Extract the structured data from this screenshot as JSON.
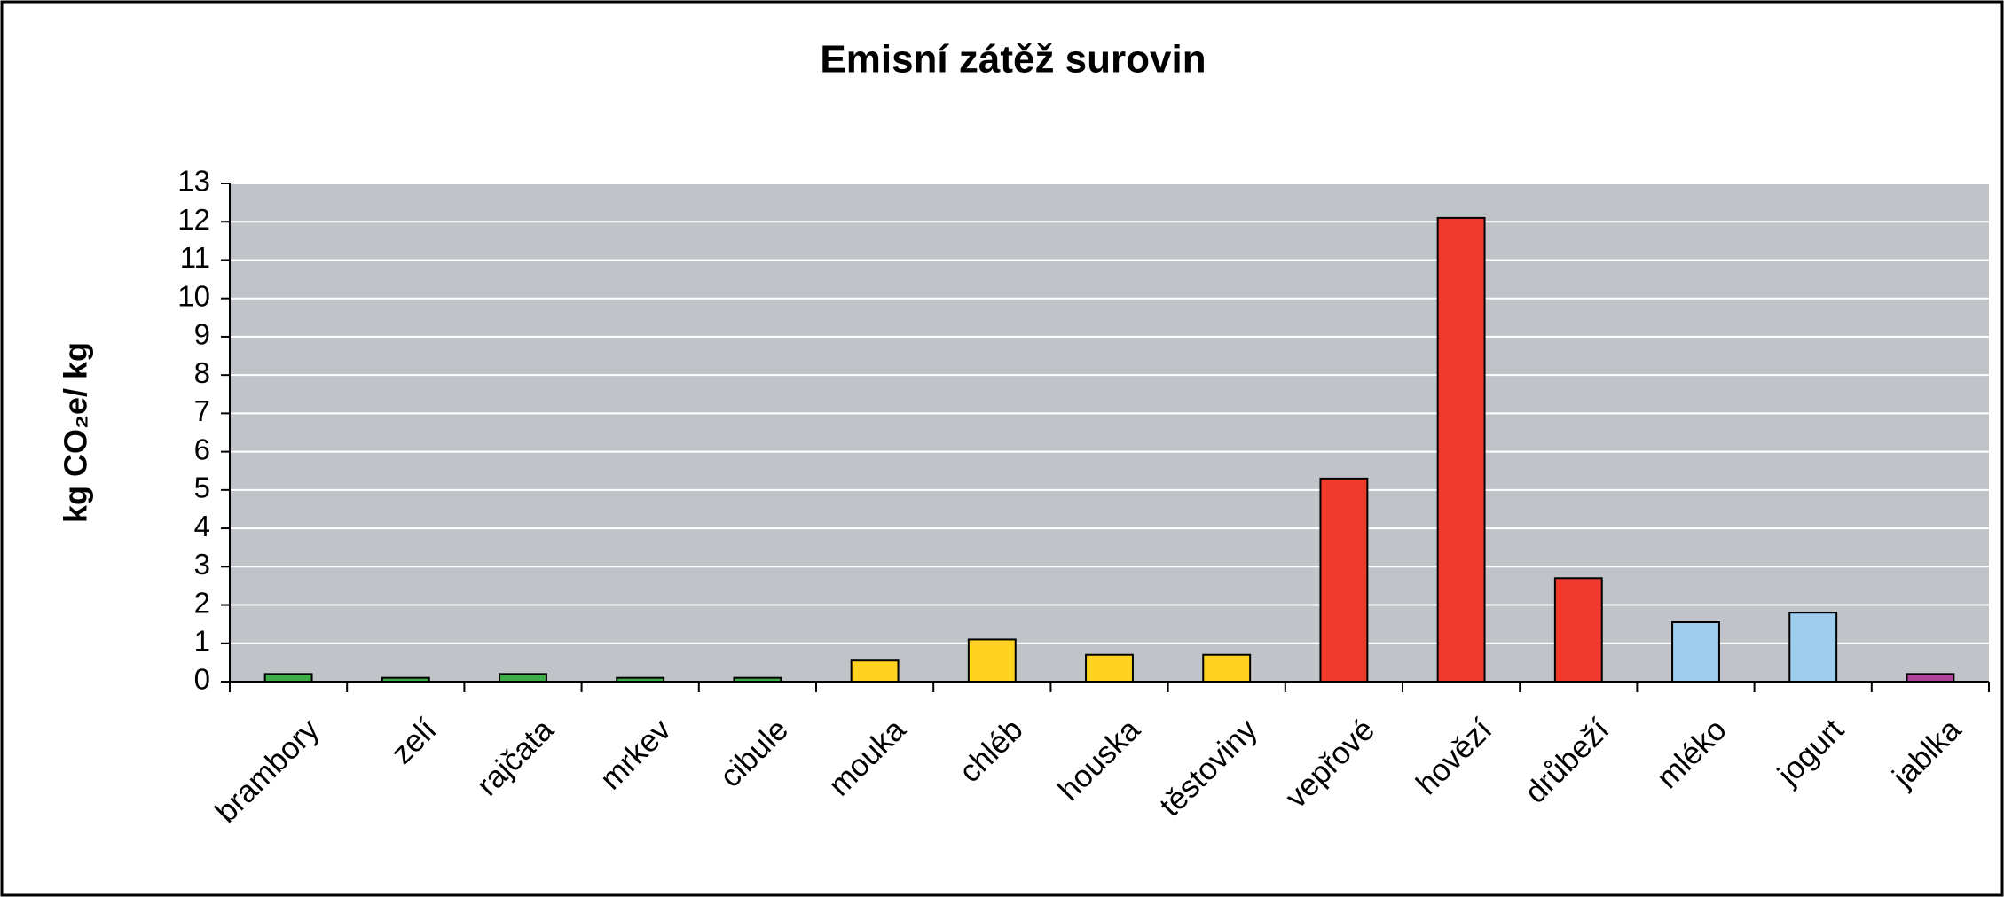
{
  "chart_data": {
    "type": "bar",
    "title": "Emisní zátěž surovin",
    "y_label": "kg CO₂e/ kg",
    "categories": [
      "brambory",
      "zelí",
      "rajčata",
      "mrkev",
      "cibule",
      "mouka",
      "chléb",
      "houska",
      "těstoviny",
      "vepřové",
      "hovězí",
      "drůbeží",
      "mléko",
      "jogurt",
      "jablka"
    ],
    "values": [
      0.2,
      0.1,
      0.2,
      0.1,
      0.1,
      0.55,
      1.1,
      0.7,
      0.7,
      5.3,
      12.1,
      2.7,
      1.55,
      1.8,
      0.2
    ],
    "colors": [
      "#3fae49",
      "#3fae49",
      "#3fae49",
      "#3fae49",
      "#3fae49",
      "#ffd320",
      "#ffd320",
      "#ffd320",
      "#ffd320",
      "#ee3b2b",
      "#ee3b2b",
      "#ee3b2b",
      "#9fcdee",
      "#9fcdee",
      "#b0449a"
    ],
    "ylim": [
      0,
      13
    ],
    "yticks": [
      0,
      1,
      2,
      3,
      4,
      5,
      6,
      7,
      8,
      9,
      10,
      11,
      12,
      13
    ],
    "grid": true
  }
}
